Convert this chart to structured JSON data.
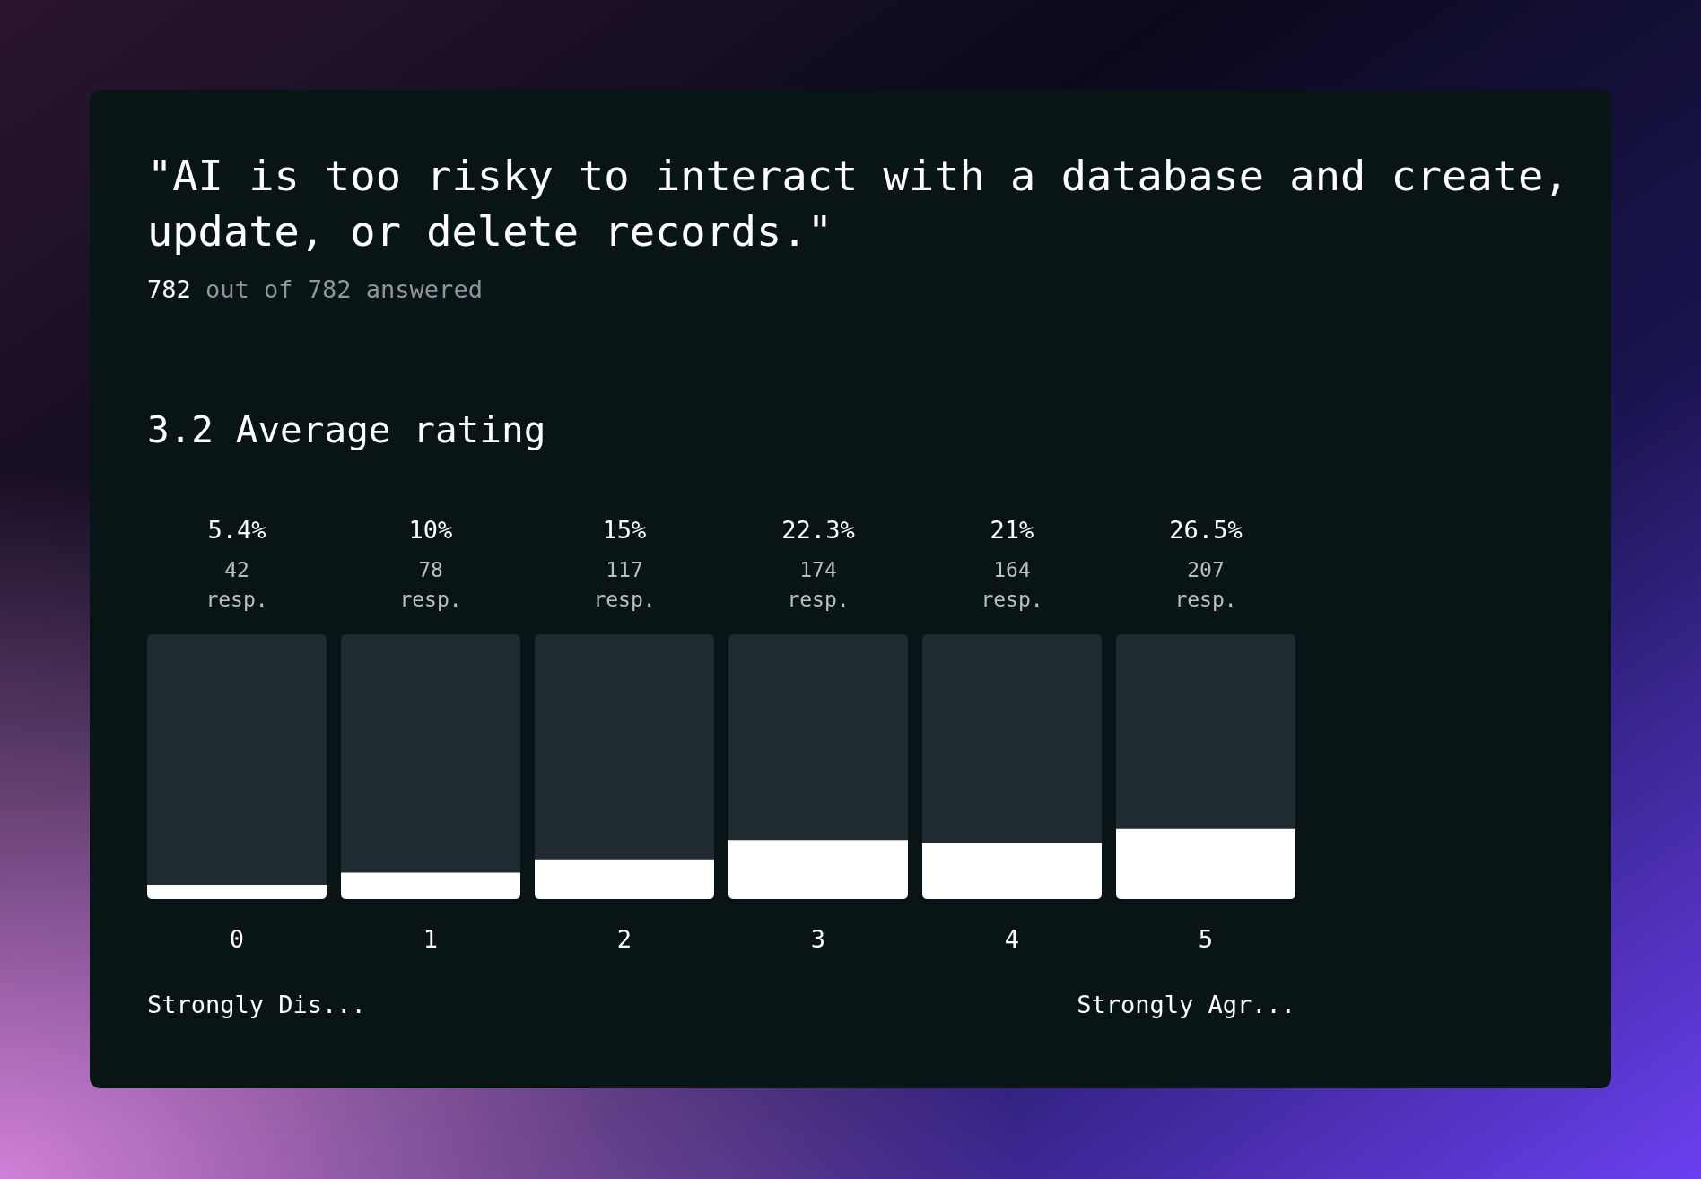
{
  "chart_data": {
    "type": "bar",
    "title": "\"AI is too risky to interact with a database and create, update, or delete records.\"",
    "subtitle": "782 out of 782 answered",
    "categories": [
      "0",
      "1",
      "2",
      "3",
      "4",
      "5"
    ],
    "values": [
      5.4,
      10,
      15,
      22.3,
      21,
      26.5
    ],
    "value_labels": [
      "5.4%",
      "10%",
      "15%",
      "22.3%",
      "21%",
      "26.5%"
    ],
    "color": "#ffffff",
    "ylim": [
      0,
      100
    ],
    "annotations": [
      "3.2 Average rating",
      "Strongly Dis...",
      "Strongly Agr...",
      "42 resp.",
      "78 resp.",
      "117 resp.",
      "174 resp.",
      "164 resp.",
      "207 resp."
    ]
  }
}
